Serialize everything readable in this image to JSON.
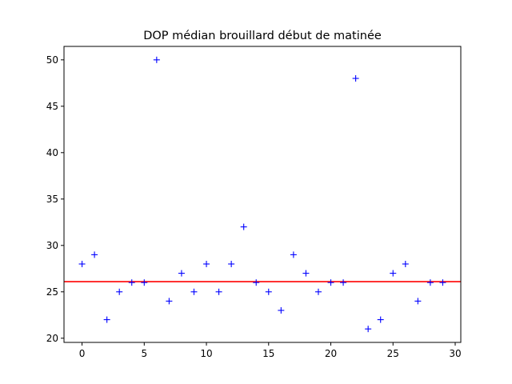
{
  "chart_data": {
    "type": "scatter",
    "title": "DOP médian brouillard début de matinée",
    "xlabel": "",
    "ylabel": "",
    "xlim": [
      -1.45,
      30.45
    ],
    "ylim": [
      19.55,
      51.45
    ],
    "xticks": [
      0,
      5,
      10,
      15,
      20,
      25,
      30
    ],
    "yticks": [
      20,
      25,
      30,
      35,
      40,
      45,
      50
    ],
    "marker": "+",
    "grid": false,
    "series": [
      {
        "x": [
          0,
          1,
          2,
          3,
          4,
          5,
          6,
          7,
          8,
          9,
          10,
          11,
          12,
          13,
          14,
          15,
          16,
          17,
          18,
          19,
          20,
          21,
          22,
          23,
          24,
          25,
          26,
          27,
          28,
          29
        ],
        "y": [
          28,
          29,
          22,
          25,
          26,
          26,
          50,
          24,
          27,
          25,
          28,
          25,
          28,
          32,
          26,
          25,
          23,
          29,
          27,
          25,
          26,
          26,
          48,
          21,
          22,
          27,
          28,
          24,
          26,
          26
        ],
        "color": "#0000ff"
      }
    ],
    "hline": {
      "y": 26.1,
      "color": "#ff0000"
    }
  }
}
